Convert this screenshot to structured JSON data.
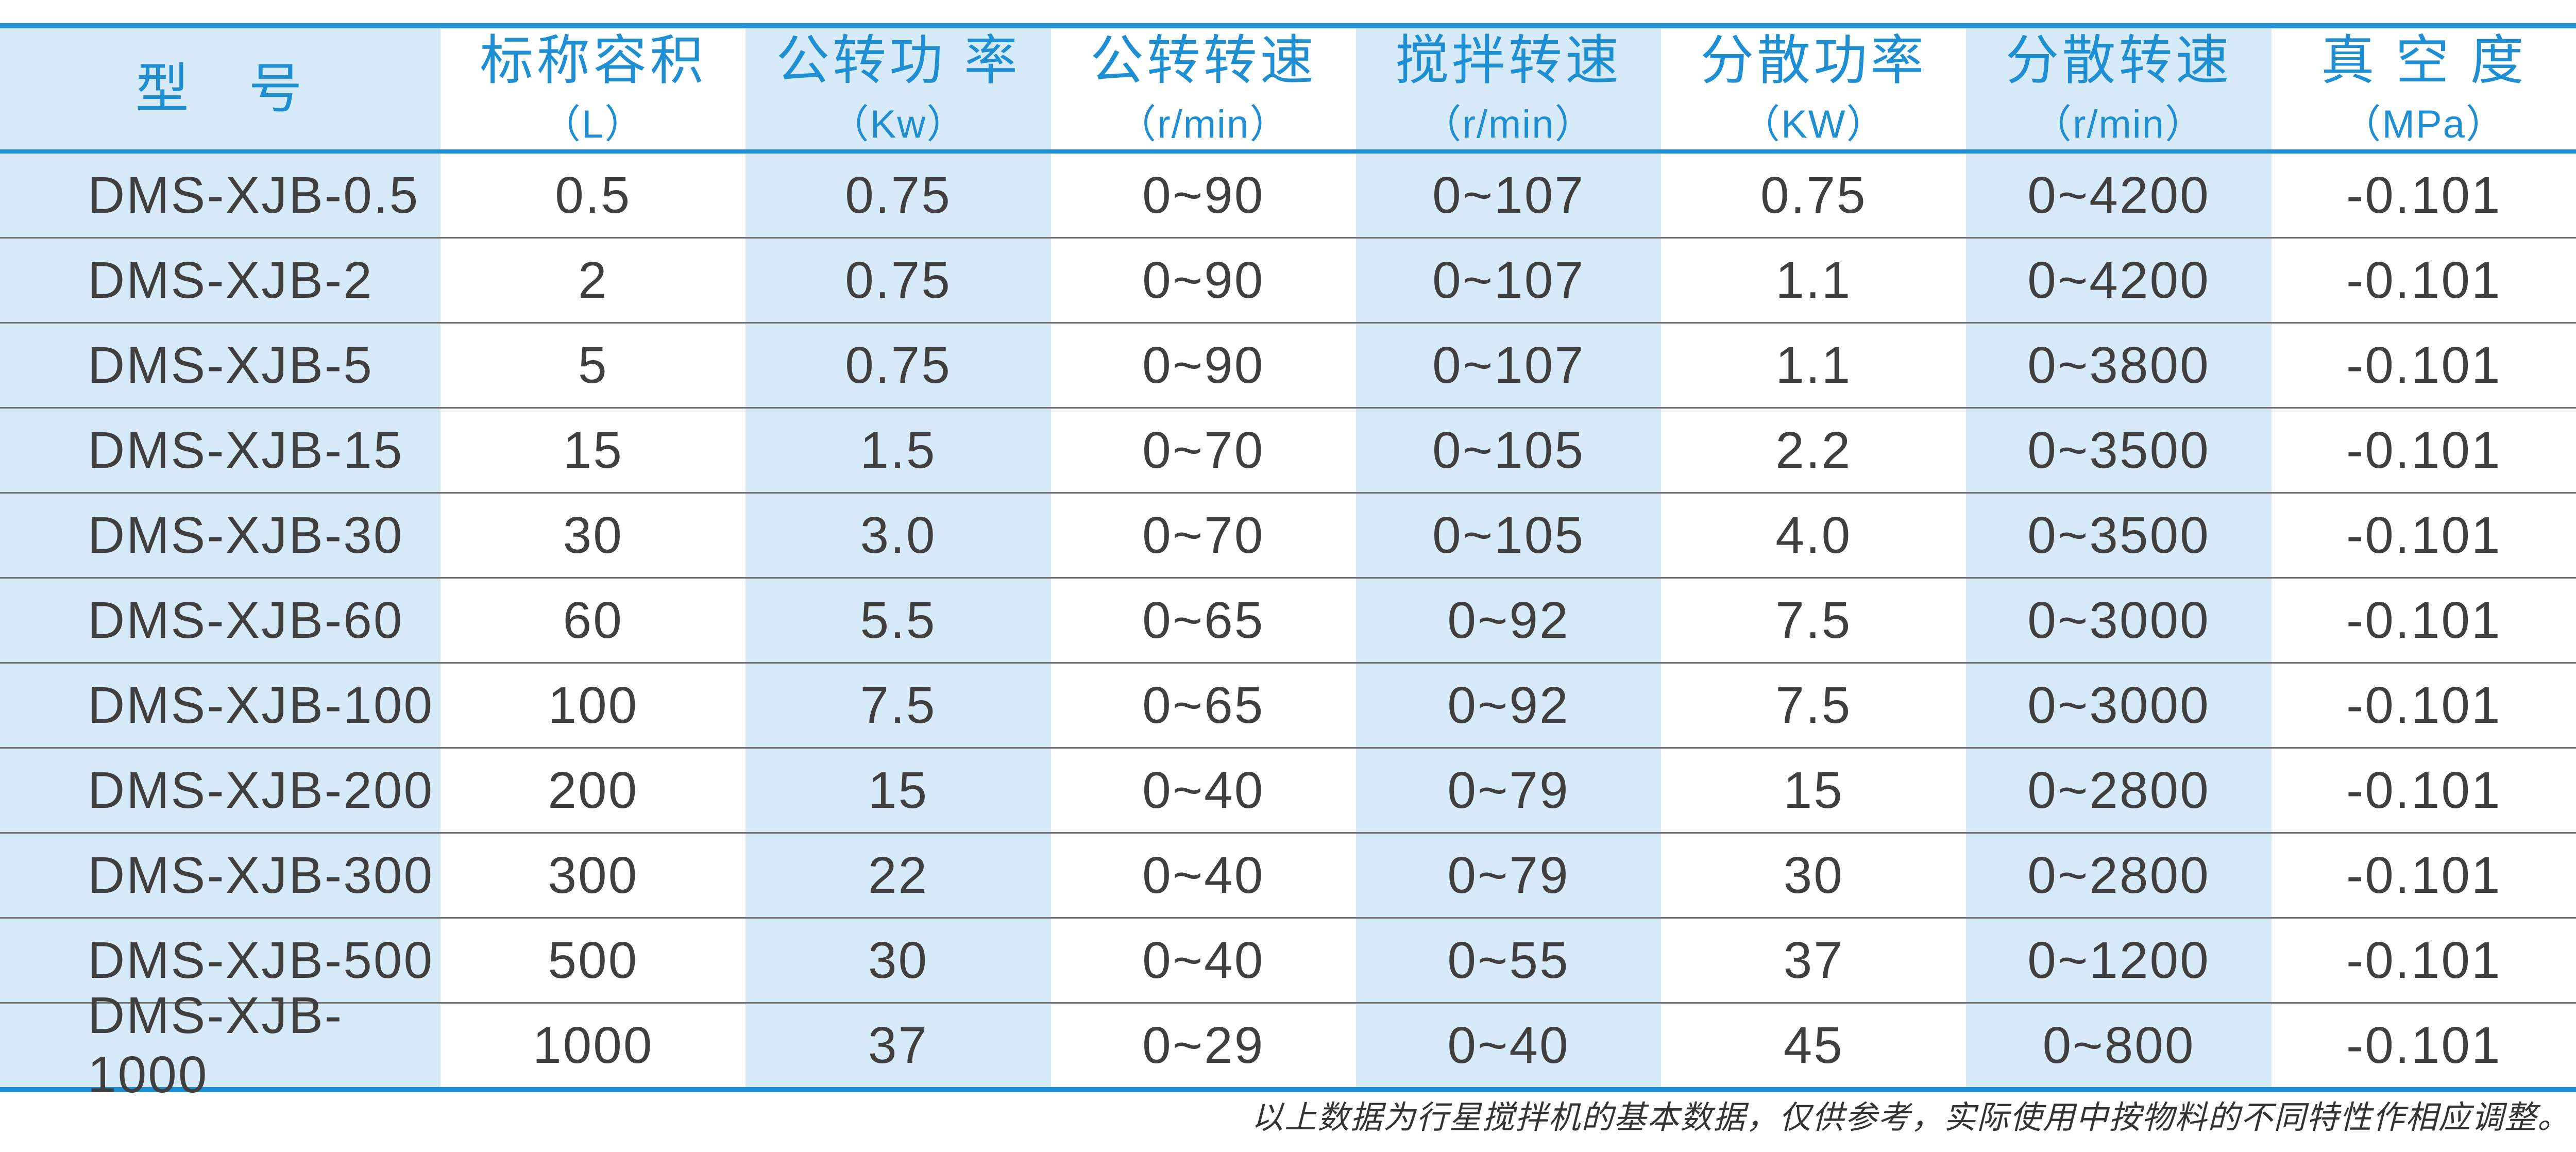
{
  "colors": {
    "accent_blue": "#1e8fd2",
    "header_text_blue": "#1b8dd1",
    "light_blue_column_bg": "#d7eaf8",
    "body_text": "#3f3f3f",
    "row_separator_gray": "#707070",
    "footnote_text": "#333333"
  },
  "table": {
    "columns": [
      {
        "title": "型　号",
        "subtitle": ""
      },
      {
        "title": "标称容积",
        "subtitle": "（L）"
      },
      {
        "title": "公转功 率",
        "subtitle": "（Kw）"
      },
      {
        "title": "公转转速",
        "subtitle": "（r/min）"
      },
      {
        "title": "搅拌转速",
        "subtitle": "（r/min）"
      },
      {
        "title": "分散功率",
        "subtitle": "（KW）"
      },
      {
        "title": "分散转速",
        "subtitle": "（r/min）"
      },
      {
        "title": "真 空 度",
        "subtitle": "（MPa）"
      }
    ],
    "rows": [
      [
        "DMS-XJB-0.5",
        "0.5",
        "0.75",
        "0~90",
        "0~107",
        "0.75",
        "0~4200",
        "-0.101"
      ],
      [
        "DMS-XJB-2",
        "2",
        "0.75",
        "0~90",
        "0~107",
        "1.1",
        "0~4200",
        "-0.101"
      ],
      [
        "DMS-XJB-5",
        "5",
        "0.75",
        "0~90",
        "0~107",
        "1.1",
        "0~3800",
        "-0.101"
      ],
      [
        "DMS-XJB-15",
        "15",
        "1.5",
        "0~70",
        "0~105",
        "2.2",
        "0~3500",
        "-0.101"
      ],
      [
        "DMS-XJB-30",
        "30",
        "3.0",
        "0~70",
        "0~105",
        "4.0",
        "0~3500",
        "-0.101"
      ],
      [
        "DMS-XJB-60",
        "60",
        "5.5",
        "0~65",
        "0~92",
        "7.5",
        "0~3000",
        "-0.101"
      ],
      [
        "DMS-XJB-100",
        "100",
        "7.5",
        "0~65",
        "0~92",
        "7.5",
        "0~3000",
        "-0.101"
      ],
      [
        "DMS-XJB-200",
        "200",
        "15",
        "0~40",
        "0~79",
        "15",
        "0~2800",
        "-0.101"
      ],
      [
        "DMS-XJB-300",
        "300",
        "22",
        "0~40",
        "0~79",
        "30",
        "0~2800",
        "-0.101"
      ],
      [
        "DMS-XJB-500",
        "500",
        "30",
        "0~40",
        "0~55",
        "37",
        "0~1200",
        "-0.101"
      ],
      [
        "DMS-XJB-1000",
        "1000",
        "37",
        "0~29",
        "0~40",
        "45",
        "0~800",
        "-0.101"
      ]
    ]
  },
  "footnote": "以上数据为行星搅拌机的基本数据，仅供参考，实际使用中按物料的不同特性作相应调整。"
}
